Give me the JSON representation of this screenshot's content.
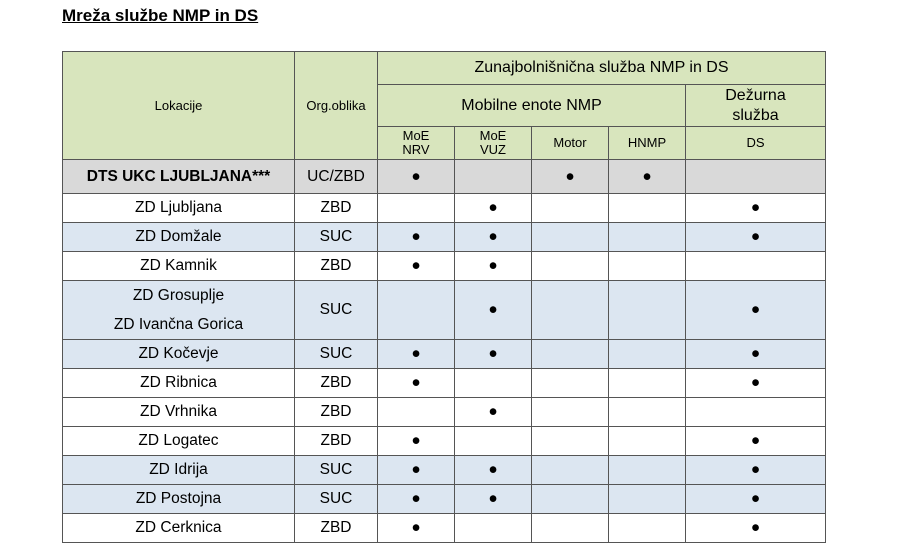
{
  "title": "Mreža službe NMP in DS",
  "header": {
    "lokacije": "Lokacije",
    "org": "Org.oblika",
    "zunaj": "Zunajbolnišnična služba NMP in DS",
    "mobilne": "Mobilne enote NMP",
    "dezurna_1": "Dežurna",
    "dezurna_2": "služba",
    "moe_nrv_1": "MoE",
    "moe_nrv_2": "NRV",
    "moe_vuz_1": "MoE",
    "moe_vuz_2": "VUZ",
    "motor": "Motor",
    "hnmp": "HNMP",
    "ds": "DS"
  },
  "bullet": "●",
  "rows": [
    {
      "loc": "DTS UKC LJUBLJANA***",
      "org": "UC/ZBD",
      "nrv": "●",
      "vuz": "",
      "motor": "●",
      "hnmp": "●",
      "ds": ""
    },
    {
      "loc": "ZD Ljubljana",
      "org": "ZBD",
      "nrv": "",
      "vuz": "●",
      "motor": "",
      "hnmp": "",
      "ds": "●"
    },
    {
      "loc": "ZD Domžale",
      "org": "SUC",
      "nrv": "●",
      "vuz": "●",
      "motor": "",
      "hnmp": "",
      "ds": "●"
    },
    {
      "loc": "ZD Kamnik",
      "org": "ZBD",
      "nrv": "●",
      "vuz": "●",
      "motor": "",
      "hnmp": "",
      "ds": ""
    },
    {
      "loc": "ZD Grosuplje",
      "loc2": "ZD Ivančna Gorica",
      "org": "SUC",
      "nrv": "",
      "vuz": "●",
      "motor": "",
      "hnmp": "",
      "ds": "●"
    },
    {
      "loc": "ZD Kočevje",
      "org": "SUC",
      "nrv": "●",
      "vuz": "●",
      "motor": "",
      "hnmp": "",
      "ds": "●"
    },
    {
      "loc": "ZD Ribnica",
      "org": "ZBD",
      "nrv": "●",
      "vuz": "",
      "motor": "",
      "hnmp": "",
      "ds": "●"
    },
    {
      "loc": "ZD Vrhnika",
      "org": "ZBD",
      "nrv": "",
      "vuz": "●",
      "motor": "",
      "hnmp": "",
      "ds": ""
    },
    {
      "loc": "ZD Logatec",
      "org": "ZBD",
      "nrv": "●",
      "vuz": "",
      "motor": "",
      "hnmp": "",
      "ds": "●"
    },
    {
      "loc": "ZD Idrija",
      "org": "SUC",
      "nrv": "●",
      "vuz": "●",
      "motor": "",
      "hnmp": "",
      "ds": "●"
    },
    {
      "loc": "ZD Postojna",
      "org": "SUC",
      "nrv": "●",
      "vuz": "●",
      "motor": "",
      "hnmp": "",
      "ds": "●"
    },
    {
      "loc": "ZD Cerknica",
      "org": "ZBD",
      "nrv": "●",
      "vuz": "",
      "motor": "",
      "hnmp": "",
      "ds": "●"
    }
  ]
}
